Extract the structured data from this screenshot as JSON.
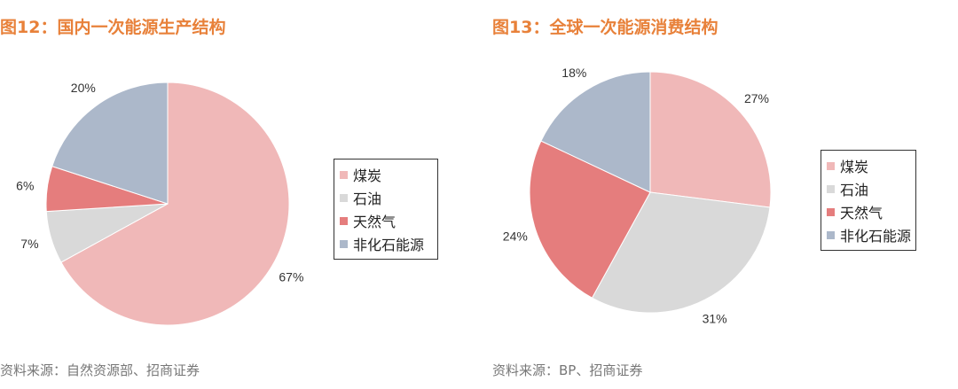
{
  "colors": {
    "coal": "#f0b8b8",
    "oil": "#d9d9d9",
    "gas": "#e57d7d",
    "nonfossil": "#acb8ca"
  },
  "chart_data": [
    {
      "type": "pie",
      "title": "图12：国内一次能源生产结构",
      "source": "资料来源：自然资源部、招商证券",
      "legend_placement": "right",
      "slices": [
        {
          "label": "煤炭",
          "value": 67,
          "text": "67%",
          "color": "#f0b8b8"
        },
        {
          "label": "石油",
          "value": 7,
          "text": "7%",
          "color": "#d9d9d9"
        },
        {
          "label": "天然气",
          "value": 6,
          "text": "6%",
          "color": "#e57d7d"
        },
        {
          "label": "非化石能源",
          "value": 20,
          "text": "20%",
          "color": "#acb8ca"
        }
      ]
    },
    {
      "type": "pie",
      "title": "图13：全球一次能源消费结构",
      "source": "资料来源：BP、招商证券",
      "legend_placement": "right",
      "slices": [
        {
          "label": "煤炭",
          "value": 27,
          "text": "27%",
          "color": "#f0b8b8"
        },
        {
          "label": "石油",
          "value": 31,
          "text": "31%",
          "color": "#d9d9d9"
        },
        {
          "label": "天然气",
          "value": 24,
          "text": "24%",
          "color": "#e57d7d"
        },
        {
          "label": "非化石能源",
          "value": 18,
          "text": "18%",
          "color": "#acb8ca"
        }
      ]
    }
  ]
}
